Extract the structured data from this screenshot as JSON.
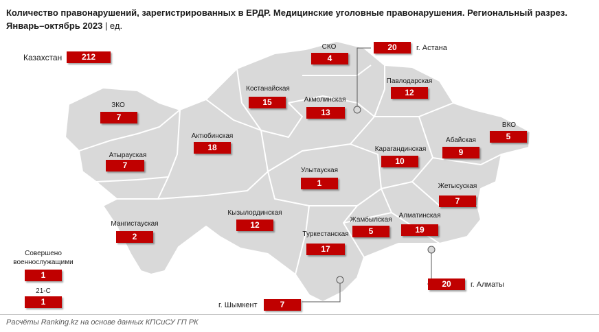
{
  "title": {
    "main": "Количество правонарушений, зарегистрированных в ЕРДР. Медицинские уголовные правонарушения. Региональный разрез.",
    "line2": "Январь–октябрь 2023",
    "unit": " | ед."
  },
  "colors": {
    "badge": "#c00000",
    "map_fill": "#d9d9d9",
    "map_border": "#ffffff"
  },
  "totals": {
    "kazakhstan_label": "Казахстан",
    "kazakhstan_value": "212"
  },
  "regions": {
    "zko": {
      "label": "ЗКО",
      "value": "7"
    },
    "atyrau": {
      "label": "Атырауская",
      "value": "7"
    },
    "mangistau": {
      "label": "Мангистауская",
      "value": "2"
    },
    "aktobe": {
      "label": "Актюбинская",
      "value": "18"
    },
    "kostanay": {
      "label": "Костанайская",
      "value": "15"
    },
    "sko": {
      "label": "СКО",
      "value": "4"
    },
    "akmola": {
      "label": "Акмолинская",
      "value": "13"
    },
    "pavlodar": {
      "label": "Павлодарская",
      "value": "12"
    },
    "vko": {
      "label": "ВКО",
      "value": "5"
    },
    "abay": {
      "label": "Абайская",
      "value": "9"
    },
    "karaganda": {
      "label": "Карагандинская",
      "value": "10"
    },
    "ulytau": {
      "label": "Улытауская",
      "value": "1"
    },
    "zhetysu": {
      "label": "Жетысуская",
      "value": "7"
    },
    "kyzylorda": {
      "label": "Кызылординская",
      "value": "12"
    },
    "zhambyl": {
      "label": "Жамбылская",
      "value": "5"
    },
    "almaty_reg": {
      "label": "Алматинская",
      "value": "19"
    },
    "turkestan": {
      "label": "Туркестанская",
      "value": "17"
    }
  },
  "cities": {
    "astana": {
      "label": "г. Астана",
      "value": "20"
    },
    "almaty": {
      "label": "г. Алматы",
      "value": "20"
    },
    "shymkent": {
      "label": "г. Шымкент",
      "value": "7"
    }
  },
  "other": {
    "military": {
      "label_line1": "Совершено",
      "label_line2": "военнослужащими",
      "value": "1"
    },
    "c21": {
      "label": "21-С",
      "value": "1"
    }
  },
  "footer": "Расчёты Ranking.kz на основе данных КПСиСУ ГП РК"
}
